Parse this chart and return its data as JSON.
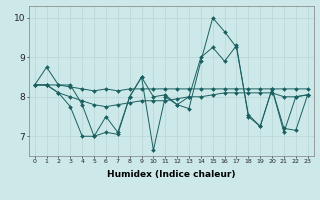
{
  "xlabel": "Humidex (Indice chaleur)",
  "ylabel": "",
  "bg_color": "#cce8e8",
  "grid_color": "#b8d4d4",
  "line_color": "#1a6060",
  "xlim": [
    -0.5,
    23.5
  ],
  "ylim": [
    6.5,
    10.3
  ],
  "yticks": [
    7,
    8,
    9,
    10
  ],
  "xticks": [
    0,
    1,
    2,
    3,
    4,
    5,
    6,
    7,
    8,
    9,
    10,
    11,
    12,
    13,
    14,
    15,
    16,
    17,
    18,
    19,
    20,
    21,
    22,
    23
  ],
  "series": [
    [
      8.3,
      8.75,
      8.3,
      8.3,
      7.8,
      7.0,
      7.1,
      7.05,
      8.0,
      8.5,
      8.0,
      8.05,
      7.8,
      7.7,
      8.9,
      10.0,
      9.65,
      9.25,
      7.55,
      7.25,
      8.2,
      7.1,
      8.0,
      8.05
    ],
    [
      8.3,
      8.3,
      8.3,
      8.25,
      8.2,
      8.15,
      8.2,
      8.15,
      8.2,
      8.2,
      8.2,
      8.2,
      8.2,
      8.2,
      8.2,
      8.2,
      8.2,
      8.2,
      8.2,
      8.2,
      8.2,
      8.2,
      8.2,
      8.2
    ],
    [
      8.3,
      8.3,
      8.1,
      8.0,
      7.9,
      7.8,
      7.75,
      7.8,
      7.85,
      7.9,
      7.9,
      7.9,
      7.95,
      8.0,
      8.0,
      8.05,
      8.1,
      8.1,
      8.1,
      8.1,
      8.1,
      8.0,
      8.0,
      8.05
    ],
    [
      8.3,
      8.3,
      8.1,
      7.75,
      7.0,
      7.0,
      7.5,
      7.1,
      8.0,
      8.5,
      6.65,
      8.0,
      7.8,
      8.0,
      9.0,
      9.25,
      8.9,
      9.3,
      7.5,
      7.25,
      8.2,
      7.2,
      7.15,
      8.05
    ]
  ]
}
